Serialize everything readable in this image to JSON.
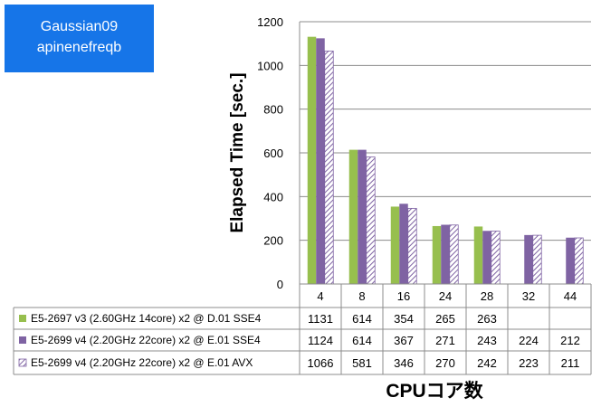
{
  "title_box": {
    "line1": "Gaussian09",
    "line2": "apinenefreqb"
  },
  "chart_data": {
    "type": "bar",
    "categories": [
      "4",
      "8",
      "16",
      "24",
      "28",
      "32",
      "44"
    ],
    "series": [
      {
        "name": "E5-2697 v3 (2.60GHz 14core) x2 @ D.01 SSE4",
        "values": [
          1131,
          614,
          354,
          265,
          263,
          null,
          null
        ],
        "color": "#97bf4e",
        "pattern": "solid"
      },
      {
        "name": "E5-2699 v4 (2.20GHz 22core) x2 @ E.01 SSE4",
        "values": [
          1124,
          614,
          367,
          271,
          243,
          224,
          212
        ],
        "color": "#7f63a3",
        "pattern": "solid"
      },
      {
        "name": "E5-2699 v4 (2.20GHz 22core) x2 @ E.01 AVX",
        "values": [
          1066,
          581,
          346,
          270,
          242,
          223,
          211
        ],
        "color": "#7f63a3",
        "pattern": "hatch"
      }
    ],
    "ylabel": "Elapsed Time [sec.]",
    "xlabel": "CPUコア数",
    "ylim": [
      0,
      1200
    ],
    "yticks": [
      0,
      200,
      400,
      600,
      800,
      1000,
      1200
    ],
    "grid": true,
    "data_table": true
  }
}
